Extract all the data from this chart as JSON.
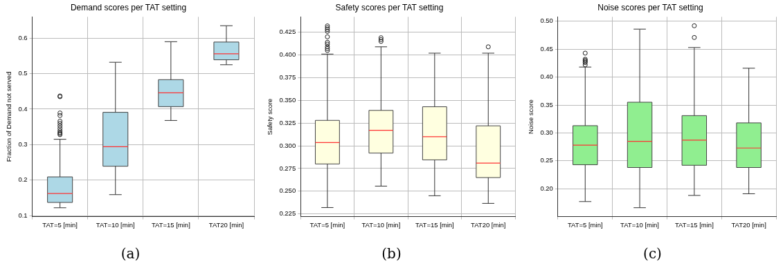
{
  "chart_data": [
    {
      "type": "box",
      "title": "Demand scores per TAT setting",
      "ylabel": "Fraction of Demand not served",
      "categories": [
        "TAT=5 [min]",
        "TAT=10 [min]",
        "TAT=15 [min]",
        "TAT20 [min]"
      ],
      "ylim": [
        0.097,
        0.66
      ],
      "yticks": [
        0.1,
        0.2,
        0.3,
        0.4,
        0.5,
        0.6
      ],
      "grid": true,
      "annotations": [
        "(a)"
      ],
      "series": [
        {
          "color": "#add8e6",
          "boxes": [
            {
              "low": 0.122,
              "q1": 0.137,
              "median": 0.162,
              "q3": 0.209,
              "high": 0.315,
              "outliers": [
                0.328,
                0.331,
                0.334,
                0.339,
                0.346,
                0.353,
                0.36,
                0.366,
                0.382,
                0.389,
                0.435,
                0.437
              ]
            },
            {
              "low": 0.159,
              "q1": 0.239,
              "median": 0.294,
              "q3": 0.391,
              "high": 0.532
            },
            {
              "low": 0.368,
              "q1": 0.407,
              "median": 0.446,
              "q3": 0.483,
              "high": 0.59
            },
            {
              "low": 0.525,
              "q1": 0.539,
              "median": 0.556,
              "q3": 0.589,
              "high": 0.635
            }
          ]
        }
      ]
    },
    {
      "type": "box",
      "title": "Safety scores per TAT setting",
      "ylabel": "Safety score",
      "categories": [
        "TAT=5 [min]",
        "TAT=10 [min]",
        "TAT=15 [min]",
        "TAT20 [min]"
      ],
      "ylim": [
        0.222,
        0.442
      ],
      "yticks": [
        {
          "value": 0.225,
          "label": "0.225"
        },
        {
          "value": 0.25,
          "label": "0.250"
        },
        {
          "value": 0.275,
          "label": "0.275"
        },
        {
          "value": 0.3,
          "label": "0.300"
        },
        {
          "value": 0.325,
          "label": "0.325"
        },
        {
          "value": 0.35,
          "label": "0.350"
        },
        {
          "value": 0.375,
          "label": "0.375"
        },
        {
          "value": 0.4,
          "label": "0.400"
        },
        {
          "value": 0.425,
          "label": "0.425"
        }
      ],
      "grid": true,
      "annotations": [
        "(b)"
      ],
      "series": [
        {
          "color": "#ffffe0",
          "boxes": [
            {
              "low": 0.232,
              "q1": 0.28,
              "median": 0.3035,
              "q3": 0.328,
              "high": 0.401,
              "outliers": [
                0.405,
                0.407,
                0.409,
                0.412,
                0.414,
                0.42,
                0.426,
                0.428,
                0.43,
                0.432
              ]
            },
            {
              "low": 0.2556,
              "q1": 0.292,
              "median": 0.317,
              "q3": 0.339,
              "high": 0.409,
              "outliers": [
                0.415,
                0.417,
                0.419
              ]
            },
            {
              "low": 0.245,
              "q1": 0.2845,
              "median": 0.31,
              "q3": 0.343,
              "high": 0.402
            },
            {
              "low": 0.2366,
              "q1": 0.265,
              "median": 0.281,
              "q3": 0.322,
              "high": 0.402,
              "outliers": [
                0.409
              ]
            }
          ]
        }
      ]
    },
    {
      "type": "box",
      "title": "Noise scores per TAT setting",
      "ylabel": "Noise score",
      "categories": [
        "TAT=5 [min]",
        "TAT=10 [min]",
        "TAT=15 [min]",
        "TAT20 [min]"
      ],
      "ylim": [
        0.15,
        0.508
      ],
      "yticks": [
        {
          "value": 0.2,
          "label": "0.20"
        },
        {
          "value": 0.25,
          "label": "0.25"
        },
        {
          "value": 0.3,
          "label": "0.30"
        },
        {
          "value": 0.35,
          "label": "0.35"
        },
        {
          "value": 0.4,
          "label": "0.40"
        },
        {
          "value": 0.45,
          "label": "0.45"
        },
        {
          "value": 0.5,
          "label": "0.50"
        }
      ],
      "grid": true,
      "annotations": [
        "(c)"
      ],
      "series": [
        {
          "color": "#90ee90",
          "boxes": [
            {
              "low": 0.177,
              "q1": 0.243,
              "median": 0.278,
              "q3": 0.313,
              "high": 0.418,
              "outliers": [
                0.422,
                0.426,
                0.428,
                0.43,
                0.432,
                0.443
              ]
            },
            {
              "low": 0.166,
              "q1": 0.238,
              "median": 0.285,
              "q3": 0.355,
              "high": 0.486
            },
            {
              "low": 0.188,
              "q1": 0.242,
              "median": 0.287,
              "q3": 0.331,
              "high": 0.453,
              "outliers": [
                0.471,
                0.492
              ]
            },
            {
              "low": 0.191,
              "q1": 0.238,
              "median": 0.273,
              "q3": 0.318,
              "high": 0.416
            }
          ]
        }
      ]
    }
  ]
}
